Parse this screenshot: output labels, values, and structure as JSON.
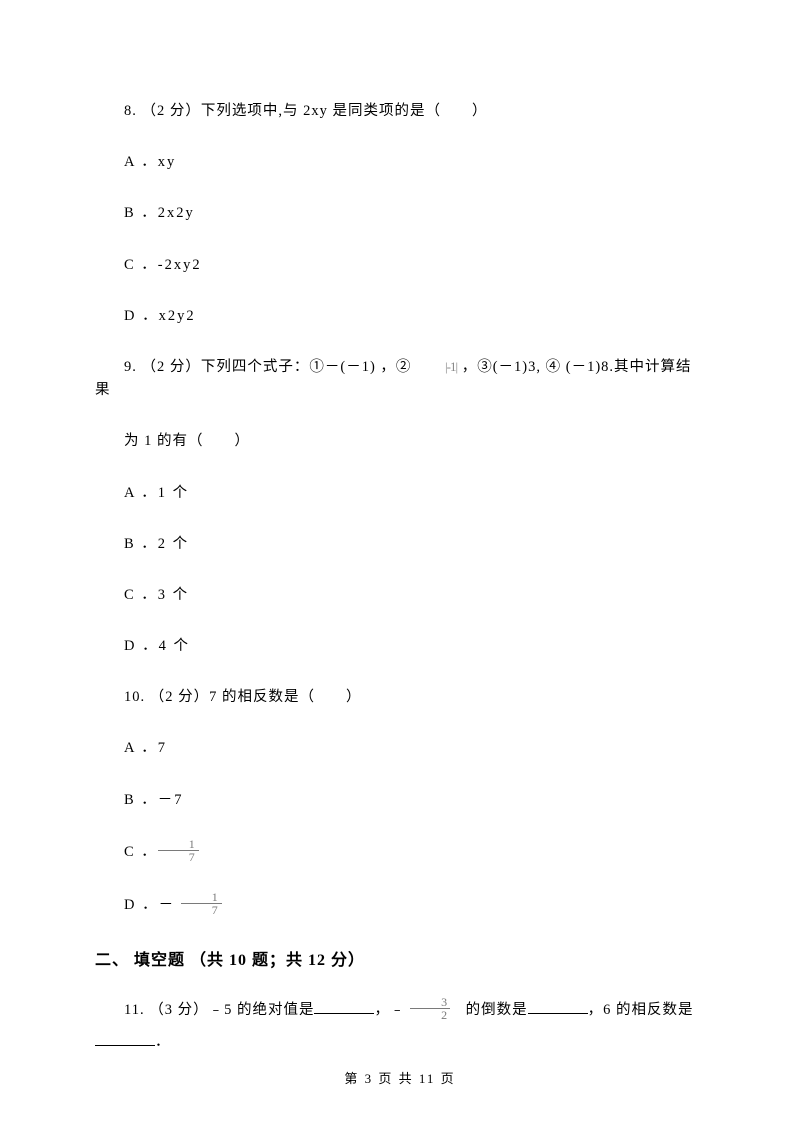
{
  "q8": {
    "stem": "8. （2 分）下列选项中,与 2xy 是同类项的是（　　）",
    "options": {
      "A": "A ．xy",
      "B": "B ．2x2y",
      "C": "C ．-2xy2",
      "D": "D ．x2y2"
    }
  },
  "q9": {
    "stem_pre": "9. （2 分）下列四个式子：①－(－1) ，② ",
    "stem_mid": "|-1|",
    "stem_post": " ，③(－1)3, ④ (－1)8.其中计算结果",
    "stem_line2": "为 1 的有（　　）",
    "options": {
      "A": "A ．1 个",
      "B": "B ．2 个",
      "C": "C ．3 个",
      "D": "D ．4 个"
    }
  },
  "q10": {
    "stem": "10. （2 分）7 的相反数是（　　）",
    "options": {
      "A": "A ．7",
      "B": "B ．－7",
      "C_pre": "C ．",
      "C_num": "1",
      "C_den": "7",
      "D_pre": "D ．－ ",
      "D_num": "1",
      "D_den": "7"
    }
  },
  "section2": {
    "title": "二、 填空题 （共 10 题；共 12 分）"
  },
  "q11": {
    "pre": "11.  （3 分）﹣5 的绝对值是",
    "mid1": "，﹣ ",
    "frac_num": "3",
    "frac_den": "2",
    "mid2": "　的倒数是",
    "mid3": "，6 的相反数是",
    "end": "．"
  },
  "footer": {
    "text": "第 3 页 共 11 页"
  }
}
